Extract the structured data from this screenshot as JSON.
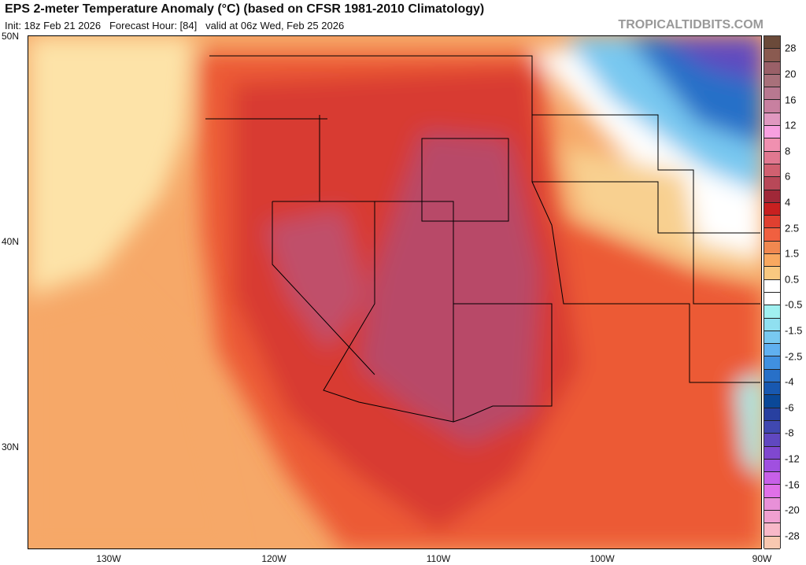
{
  "header": {
    "title": "EPS 2-meter Temperature Anomaly (°C) (based on CFSR 1981-2010 Climatology)",
    "subtitle": "Init: 18z Feb 21 2026   Forecast Hour: [84]   valid at 06z Wed, Feb 25 2026",
    "brand": "TROPICALTIDBITS.COM"
  },
  "axes": {
    "lat": [
      "50N",
      "40N",
      "30N"
    ],
    "lon": [
      "130W",
      "120W",
      "110W",
      "100W",
      "90W"
    ]
  },
  "colorbar": {
    "labels": [
      "28",
      "20",
      "16",
      "12",
      "8",
      "6",
      "4",
      "2.5",
      "1.5",
      "0.5",
      "-0.5",
      "-1.5",
      "-2.5",
      "-4",
      "-6",
      "-8",
      "-12",
      "-16",
      "-20",
      "-28"
    ],
    "colors": [
      "#6b4a3a",
      "#8a5a50",
      "#9a6068",
      "#a8707a",
      "#b87890",
      "#c880a0",
      "#e098c0",
      "#f8a0e0",
      "#f090b0",
      "#e07890",
      "#d06070",
      "#b84858",
      "#a02838",
      "#c82020",
      "#e04030",
      "#f06040",
      "#f08850",
      "#f8a860",
      "#f8c880",
      "#ffffff",
      "#ffffff",
      "#a0f0f0",
      "#90e0f0",
      "#78c8f0",
      "#60b0f0",
      "#4090e0",
      "#2870c8",
      "#1858b0",
      "#0a4898",
      "#2840a0",
      "#4048b0",
      "#6048c0",
      "#8048d0",
      "#a050e0",
      "#c860e8",
      "#e070e8",
      "#e890d8",
      "#f0a0d0",
      "#f8b8c8",
      "#f8c8b0"
    ]
  }
}
